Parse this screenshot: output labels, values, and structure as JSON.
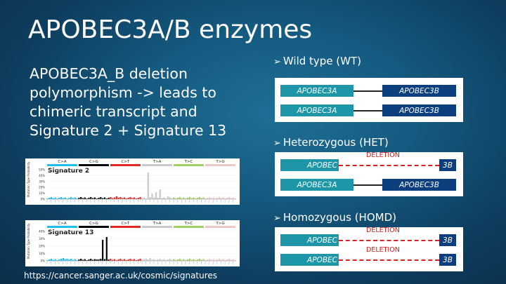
{
  "title": "APOBEC3A/B enzymes",
  "subtitle": "APOBEC3A_B deletion polymorphism -> leads to chimeric transcript and Signature 2 + Signature 13",
  "sections": {
    "wt": {
      "label": "Wild type (WT)"
    },
    "het": {
      "label": "Heterozygous (HET)"
    },
    "homd": {
      "label": "Homozygous (HOMD)"
    }
  },
  "genes": {
    "apobec3a": "APOBEC3A",
    "apobec3b": "APOBEC3B",
    "apobec_trunc": "APOBEC",
    "b3": "3B",
    "deletion": "DELETION"
  },
  "charts": {
    "mutation_types": [
      "C>A",
      "C>G",
      "C>T",
      "T>A",
      "T>C",
      "T>G"
    ],
    "type_colors": [
      "#1ebff0",
      "#050708",
      "#e62725",
      "#cbcacb",
      "#a1cf64",
      "#edc8c5"
    ],
    "y_axis_label": "Mutation Type Probability",
    "sig2": {
      "title": "Signature 2",
      "ticks": [
        "50%",
        "40%",
        "30%",
        "20%",
        "10%",
        "0%"
      ]
    },
    "sig13": {
      "title": "Signature 13",
      "ticks": [
        "40%",
        "30%",
        "20%",
        "10%",
        "0%"
      ]
    }
  },
  "footer": "https://cancer.sanger.ac.uk/cosmic/signatures",
  "colors": {
    "gene_a": "#1e96a8",
    "gene_b": "#0d3f7e",
    "deletion": "#d82222"
  }
}
